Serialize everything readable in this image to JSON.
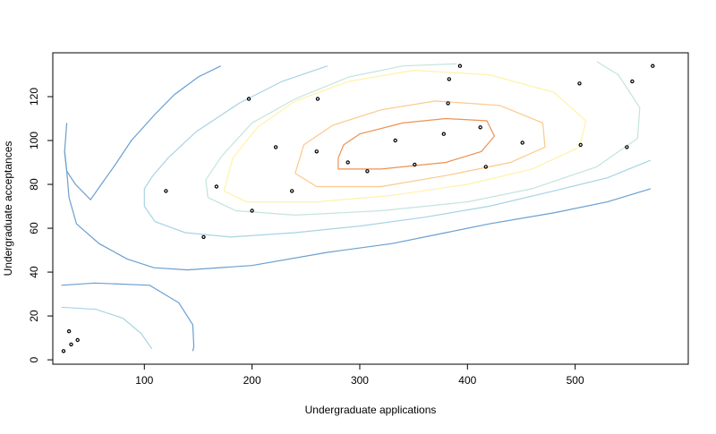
{
  "chart_data": {
    "type": "scatter",
    "title": "",
    "xlabel": "Undergraduate applications",
    "ylabel": "Undergraduate acceptances",
    "xlim": [
      15,
      605
    ],
    "ylim": [
      -2,
      140
    ],
    "grid": false,
    "legend": "none",
    "x_ticks": [
      100,
      200,
      300,
      400,
      500
    ],
    "y_ticks": [
      0,
      20,
      40,
      60,
      80,
      100,
      120
    ],
    "points": [
      {
        "x": 25,
        "y": 4
      },
      {
        "x": 30,
        "y": 13
      },
      {
        "x": 32,
        "y": 7
      },
      {
        "x": 38,
        "y": 9
      },
      {
        "x": 120,
        "y": 77
      },
      {
        "x": 155,
        "y": 56
      },
      {
        "x": 167,
        "y": 79
      },
      {
        "x": 197,
        "y": 119
      },
      {
        "x": 200,
        "y": 68
      },
      {
        "x": 222,
        "y": 97
      },
      {
        "x": 237,
        "y": 77
      },
      {
        "x": 260,
        "y": 95
      },
      {
        "x": 261,
        "y": 119
      },
      {
        "x": 289,
        "y": 90
      },
      {
        "x": 307,
        "y": 86
      },
      {
        "x": 333,
        "y": 100
      },
      {
        "x": 351,
        "y": 89
      },
      {
        "x": 378,
        "y": 103
      },
      {
        "x": 382,
        "y": 117
      },
      {
        "x": 383,
        "y": 128
      },
      {
        "x": 393,
        "y": 134
      },
      {
        "x": 412,
        "y": 106
      },
      {
        "x": 417,
        "y": 88
      },
      {
        "x": 451,
        "y": 99
      },
      {
        "x": 504,
        "y": 126
      },
      {
        "x": 505,
        "y": 98
      },
      {
        "x": 548,
        "y": 97
      },
      {
        "x": 553,
        "y": 127
      },
      {
        "x": 572,
        "y": 134
      }
    ],
    "contours": [
      {
        "color": "#6a9fd0",
        "lines": [
          [
            [
              171,
              134
            ],
            [
              150,
              129
            ],
            [
              128,
              121
            ],
            [
              110,
              112
            ],
            [
              88,
              100
            ],
            [
              73,
              89
            ],
            [
              60,
              80
            ],
            [
              50,
              73
            ],
            [
              36,
              80
            ],
            [
              28,
              86
            ],
            [
              26,
              95
            ],
            [
              28,
              108
            ]
          ],
          [
            [
              26,
              95
            ],
            [
              28,
              86
            ],
            [
              30,
              74
            ],
            [
              37,
              62
            ],
            [
              58,
              53
            ],
            [
              84,
              46
            ],
            [
              109,
              42
            ],
            [
              140,
              41
            ],
            [
              200,
              43
            ],
            [
              270,
              49
            ],
            [
              330,
              53
            ],
            [
              380,
              58
            ],
            [
              420,
              62
            ],
            [
              480,
              67
            ],
            [
              530,
              72
            ],
            [
              570,
              78
            ]
          ],
          [
            [
              23,
              34
            ],
            [
              54,
              35
            ],
            [
              105,
              34
            ],
            [
              132,
              26
            ],
            [
              145,
              16
            ],
            [
              146,
              6
            ],
            [
              145,
              4
            ]
          ]
        ]
      },
      {
        "color": "#a7d3e6",
        "lines": [
          [
            [
              270,
              134
            ],
            [
              228,
              127
            ],
            [
              188,
              117
            ],
            [
              148,
              104
            ],
            [
              122,
              92
            ],
            [
              108,
              84
            ],
            [
              100,
              78
            ],
            [
              100,
              70
            ],
            [
              110,
              63
            ],
            [
              138,
              58
            ],
            [
              180,
              56
            ],
            [
              240,
              58
            ],
            [
              300,
              61
            ],
            [
              360,
              65
            ],
            [
              420,
              70
            ],
            [
              480,
              77
            ],
            [
              530,
              83
            ],
            [
              570,
              91
            ]
          ],
          [
            [
              23,
              24
            ],
            [
              55,
              23
            ],
            [
              80,
              19
            ],
            [
              97,
              12
            ],
            [
              107,
              5
            ]
          ]
        ]
      },
      {
        "color": "#c4e4de",
        "lines": [
          [
            [
              390,
              135
            ],
            [
              340,
              134
            ],
            [
              290,
              129
            ],
            [
              240,
              119
            ],
            [
              200,
              108
            ],
            [
              172,
              93
            ],
            [
              157,
              82
            ],
            [
              159,
              74
            ],
            [
              185,
              68
            ],
            [
              240,
              66
            ],
            [
              320,
              68
            ],
            [
              400,
              72
            ],
            [
              460,
              78
            ],
            [
              520,
              88
            ],
            [
              558,
              101
            ],
            [
              560,
              115
            ],
            [
              540,
              130
            ],
            [
              520,
              136
            ]
          ]
        ]
      },
      {
        "color": "#fff2a8",
        "lines": [
          [
            [
              174,
              77
            ],
            [
              195,
              72
            ],
            [
              260,
              72
            ],
            [
              330,
              75
            ],
            [
              400,
              80
            ],
            [
              460,
              87
            ],
            [
              504,
              97
            ],
            [
              510,
              109
            ],
            [
              480,
              122
            ],
            [
              420,
              130
            ],
            [
              350,
              132
            ],
            [
              290,
              127
            ],
            [
              240,
              118
            ],
            [
              205,
              106
            ],
            [
              182,
              92
            ],
            [
              174,
              77
            ]
          ]
        ]
      },
      {
        "color": "#fbc98a",
        "lines": [
          [
            [
              240,
              85
            ],
            [
              260,
              79
            ],
            [
              320,
              79
            ],
            [
              380,
              84
            ],
            [
              440,
              90
            ],
            [
              472,
              97
            ],
            [
              470,
              108
            ],
            [
              430,
              116
            ],
            [
              370,
              118
            ],
            [
              320,
              114
            ],
            [
              275,
              107
            ],
            [
              248,
              98
            ],
            [
              240,
              85
            ]
          ]
        ]
      },
      {
        "color": "#ef9155",
        "lines": [
          [
            [
              280,
              92
            ],
            [
              280,
              87
            ],
            [
              320,
              87
            ],
            [
              380,
              90
            ],
            [
              413,
              95
            ],
            [
              425,
              102
            ],
            [
              418,
              109
            ],
            [
              380,
              110
            ],
            [
              340,
              108
            ],
            [
              300,
              103
            ],
            [
              285,
              98
            ],
            [
              280,
              92
            ]
          ]
        ]
      }
    ]
  }
}
